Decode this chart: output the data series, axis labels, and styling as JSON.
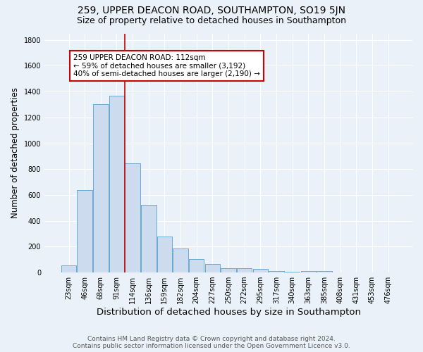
{
  "title1": "259, UPPER DEACON ROAD, SOUTHAMPTON, SO19 5JN",
  "title2": "Size of property relative to detached houses in Southampton",
  "xlabel": "Distribution of detached houses by size in Southampton",
  "ylabel": "Number of detached properties",
  "footer1": "Contains HM Land Registry data © Crown copyright and database right 2024.",
  "footer2": "Contains public sector information licensed under the Open Government Licence v3.0.",
  "annotation_line1": "259 UPPER DEACON ROAD: 112sqm",
  "annotation_line2": "← 59% of detached houses are smaller (3,192)",
  "annotation_line3": "40% of semi-detached houses are larger (2,190) →",
  "bar_labels": [
    "23sqm",
    "46sqm",
    "68sqm",
    "91sqm",
    "114sqm",
    "136sqm",
    "159sqm",
    "182sqm",
    "204sqm",
    "227sqm",
    "250sqm",
    "272sqm",
    "295sqm",
    "317sqm",
    "340sqm",
    "363sqm",
    "385sqm",
    "408sqm",
    "431sqm",
    "453sqm",
    "476sqm"
  ],
  "bar_values": [
    55,
    640,
    1305,
    1370,
    845,
    525,
    280,
    185,
    105,
    65,
    35,
    35,
    25,
    12,
    5,
    10,
    12,
    0,
    0,
    0,
    0
  ],
  "bar_color": "#ccdcee",
  "bar_edge_color": "#6aaad4",
  "vline_x": 3.5,
  "vline_color": "#cc0000",
  "annotation_box_facecolor": "#ffffff",
  "annotation_box_edgecolor": "#cc0000",
  "ylim": [
    0,
    1850
  ],
  "yticks": [
    0,
    200,
    400,
    600,
    800,
    1000,
    1200,
    1400,
    1600,
    1800
  ],
  "bg_color": "#eaf1f8",
  "grid_color": "#ffffff",
  "title1_fontsize": 10,
  "title2_fontsize": 9,
  "xlabel_fontsize": 9.5,
  "ylabel_fontsize": 8.5,
  "footer_fontsize": 6.5,
  "tick_fontsize": 7,
  "annot_fontsize": 7.5
}
